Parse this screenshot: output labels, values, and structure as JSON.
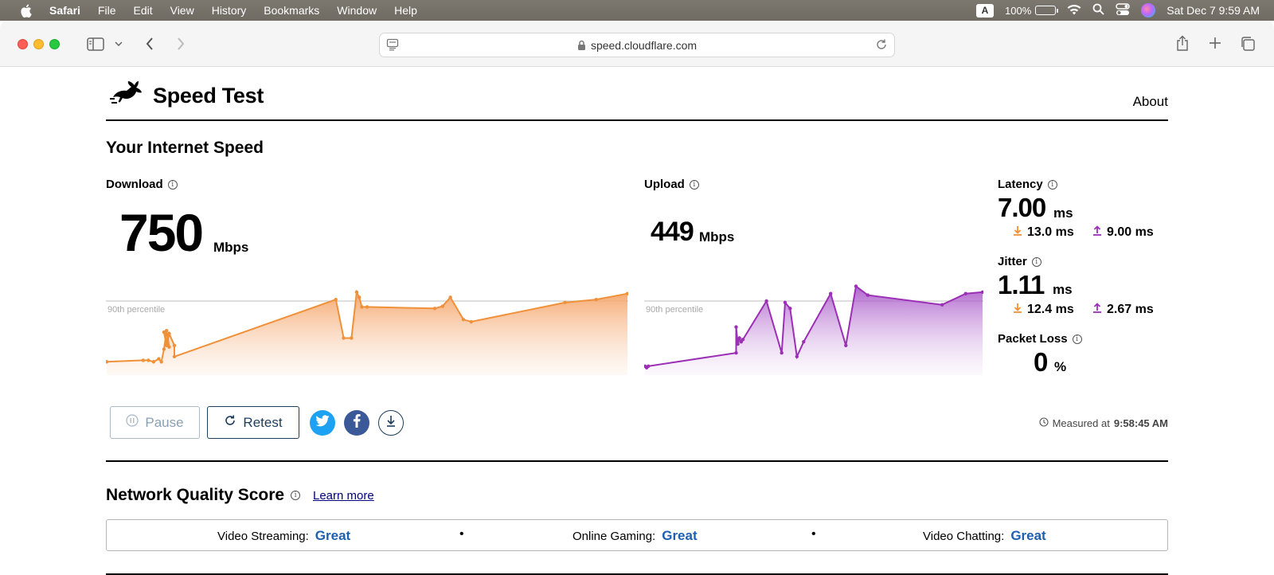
{
  "menubar": {
    "app_name": "Safari",
    "menus": [
      "File",
      "Edit",
      "View",
      "History",
      "Bookmarks",
      "Window",
      "Help"
    ],
    "keyboard_badge": "A",
    "battery": "100%",
    "datetime": "Sat Dec 7  9:59 AM"
  },
  "browser": {
    "url": "speed.cloudflare.com"
  },
  "site": {
    "title": "Speed Test",
    "about": "About"
  },
  "speed": {
    "heading": "Your Internet Speed",
    "download": {
      "label": "Download",
      "value": "750",
      "unit": "Mbps",
      "percentile_label": "90th percentile"
    },
    "upload": {
      "label": "Upload",
      "value": "449",
      "unit": "Mbps",
      "percentile_label": "90th percentile"
    },
    "latency": {
      "label": "Latency",
      "value": "7.00",
      "unit": "ms",
      "down": "13.0 ms",
      "up": "9.00 ms"
    },
    "jitter": {
      "label": "Jitter",
      "value": "1.11",
      "unit": "ms",
      "down": "12.4 ms",
      "up": "2.67 ms"
    },
    "packet_loss": {
      "label": "Packet Loss",
      "value": "0",
      "unit": "%"
    }
  },
  "actions": {
    "pause": "Pause",
    "retest": "Retest",
    "measured_prefix": "Measured at",
    "measured_time": "9:58:45 AM"
  },
  "nqs": {
    "title": "Network Quality Score",
    "learn_more": "Learn more",
    "items": [
      {
        "label": "Video Streaming:",
        "score": "Great"
      },
      {
        "label": "Online Gaming:",
        "score": "Great"
      },
      {
        "label": "Video Chatting:",
        "score": "Great"
      }
    ]
  },
  "colors": {
    "download": "#f0913a",
    "upload": "#9b2fb5",
    "score": "#1d5fb0",
    "twitter": "#1da1f2",
    "facebook": "#3b5998"
  },
  "chart_data": [
    {
      "type": "area",
      "name": "download",
      "x": [
        0,
        0.07,
        0.08,
        0.09,
        0.1,
        0.105,
        0.11,
        0.115,
        0.12,
        0.11,
        0.115,
        0.12,
        0.13,
        0.13,
        0.44,
        0.455,
        0.47,
        0.48,
        0.485,
        0.49,
        0.5,
        0.63,
        0.645,
        0.66,
        0.685,
        0.7,
        0.88,
        0.94,
        1.0
      ],
      "values": [
        0.18,
        0.2,
        0.2,
        0.18,
        0.22,
        0.18,
        0.35,
        0.6,
        0.38,
        0.58,
        0.4,
        0.56,
        0.4,
        0.25,
        1.02,
        0.5,
        0.5,
        1.12,
        1.05,
        0.92,
        0.92,
        0.9,
        0.93,
        1.05,
        0.75,
        0.72,
        0.98,
        1.02,
        1.1
      ],
      "reference_line": "90th percentile"
    },
    {
      "type": "area",
      "name": "upload",
      "x": [
        0,
        0.005,
        0.01,
        0.27,
        0.27,
        0.275,
        0.28,
        0.285,
        0.29,
        0.36,
        0.405,
        0.415,
        0.43,
        0.45,
        0.47,
        0.55,
        0.595,
        0.625,
        0.66,
        0.88,
        0.95,
        1.0
      ],
      "values": [
        0.12,
        0.1,
        0.12,
        0.3,
        0.65,
        0.42,
        0.5,
        0.45,
        0.48,
        1.0,
        0.3,
        0.98,
        0.9,
        0.25,
        0.45,
        1.1,
        0.4,
        1.2,
        1.08,
        0.95,
        1.1,
        1.12
      ],
      "reference_line": "90th percentile"
    }
  ]
}
